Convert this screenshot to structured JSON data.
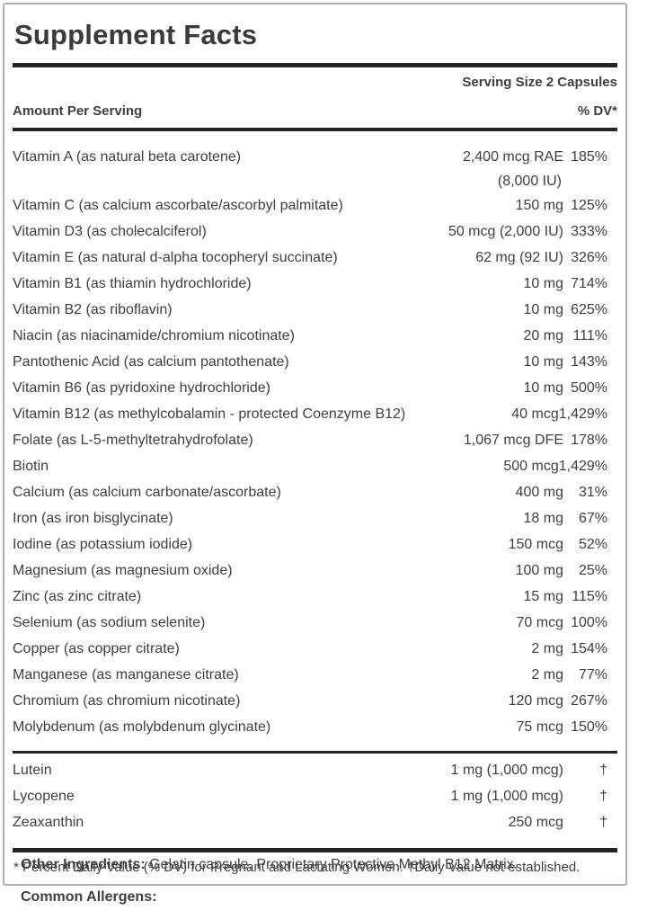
{
  "label": {
    "title": "Supplement Facts",
    "serving_size": "Serving Size 2 Capsules",
    "columns": {
      "amount_header": "Amount Per Serving",
      "dv_header": "% DV*"
    },
    "rows": [
      {
        "name": "Vitamin A (as natural beta carotene)",
        "amount": "2,400 mcg RAE",
        "amount2": "(8,000 IU)",
        "dv": "185%"
      },
      {
        "name": "Vitamin C (as calcium ascorbate/ascorbyl palmitate)",
        "amount": "150 mg",
        "dv": "125%"
      },
      {
        "name": "Vitamin D3 (as cholecalciferol)",
        "amount": "50 mcg (2,000 IU)",
        "dv": "333%"
      },
      {
        "name": "Vitamin E (as natural d-alpha tocopheryl succinate)",
        "amount": "62 mg (92 IU)",
        "dv": "326%"
      },
      {
        "name": "Vitamin B1 (as thiamin hydrochloride)",
        "amount": "10 mg",
        "dv": "714%"
      },
      {
        "name": "Vitamin B2 (as riboflavin)",
        "amount": "10 mg",
        "dv": "625%"
      },
      {
        "name": "Niacin (as niacinamide/chromium nicotinate)",
        "amount": "20 mg",
        "dv": "111%"
      },
      {
        "name": "Pantothenic Acid (as calcium pantothenate)",
        "amount": "10 mg",
        "dv": "143%"
      },
      {
        "name": "Vitamin B6 (as pyridoxine hydrochloride)",
        "amount": "10 mg",
        "dv": "500%"
      },
      {
        "name": "Vitamin B12 (as methylcobalamin - protected Coenzyme B12)",
        "amount": "40 mcg",
        "dv": "1,429%"
      },
      {
        "name": "Folate (as L-5-methyltetrahydrofolate)",
        "amount": "1,067 mcg DFE",
        "dv": "178%"
      },
      {
        "name": "Biotin",
        "amount": "500 mcg",
        "dv": "1,429%"
      },
      {
        "name": "Calcium (as calcium carbonate/ascorbate)",
        "amount": "400 mg",
        "dv": "31%"
      },
      {
        "name": "Iron (as iron bisglycinate)",
        "amount": "18 mg",
        "dv": "67%"
      },
      {
        "name": "Iodine (as potassium iodide)",
        "amount": "150 mcg",
        "dv": "52%"
      },
      {
        "name": "Magnesium (as magnesium oxide)",
        "amount": "100 mg",
        "dv": "25%"
      },
      {
        "name": "Zinc (as zinc citrate)",
        "amount": "15 mg",
        "dv": "115%"
      },
      {
        "name": "Selenium (as sodium selenite)",
        "amount": "70 mcg",
        "dv": "100%"
      },
      {
        "name": "Copper (as copper citrate)",
        "amount": "2 mg",
        "dv": "154%"
      },
      {
        "name": "Manganese (as manganese citrate)",
        "amount": "2 mg",
        "dv": "77%"
      },
      {
        "name": "Chromium (as chromium nicotinate)",
        "amount": "120 mcg",
        "dv": "267%"
      },
      {
        "name": "Molybdenum (as molybdenum glycinate)",
        "amount": "75 mcg",
        "dv": "150%"
      }
    ],
    "secondary_rows": [
      {
        "name": "Lutein",
        "amount": "1 mg (1,000 mcg)",
        "dv": "†"
      },
      {
        "name": "Lycopene",
        "amount": "1 mg (1,000 mcg)",
        "dv": "†"
      },
      {
        "name": "Zeaxanthin",
        "amount": "250 mcg",
        "dv": "†"
      }
    ],
    "footnote": "* Percent Daily Value (% DV) for Pregnant and Lactating Women. †Daily Value not established.",
    "other_ingredients": {
      "label": "Other Ingredients:",
      "text": " Gelatin capsule, Proprietary Protective Methyl B12 Matrix."
    },
    "allergens": {
      "label": "Common Allergens:",
      "text": ""
    },
    "colors": {
      "text": "#3f3f3f",
      "bar": "#242424",
      "border": "#b0b0b0"
    }
  }
}
